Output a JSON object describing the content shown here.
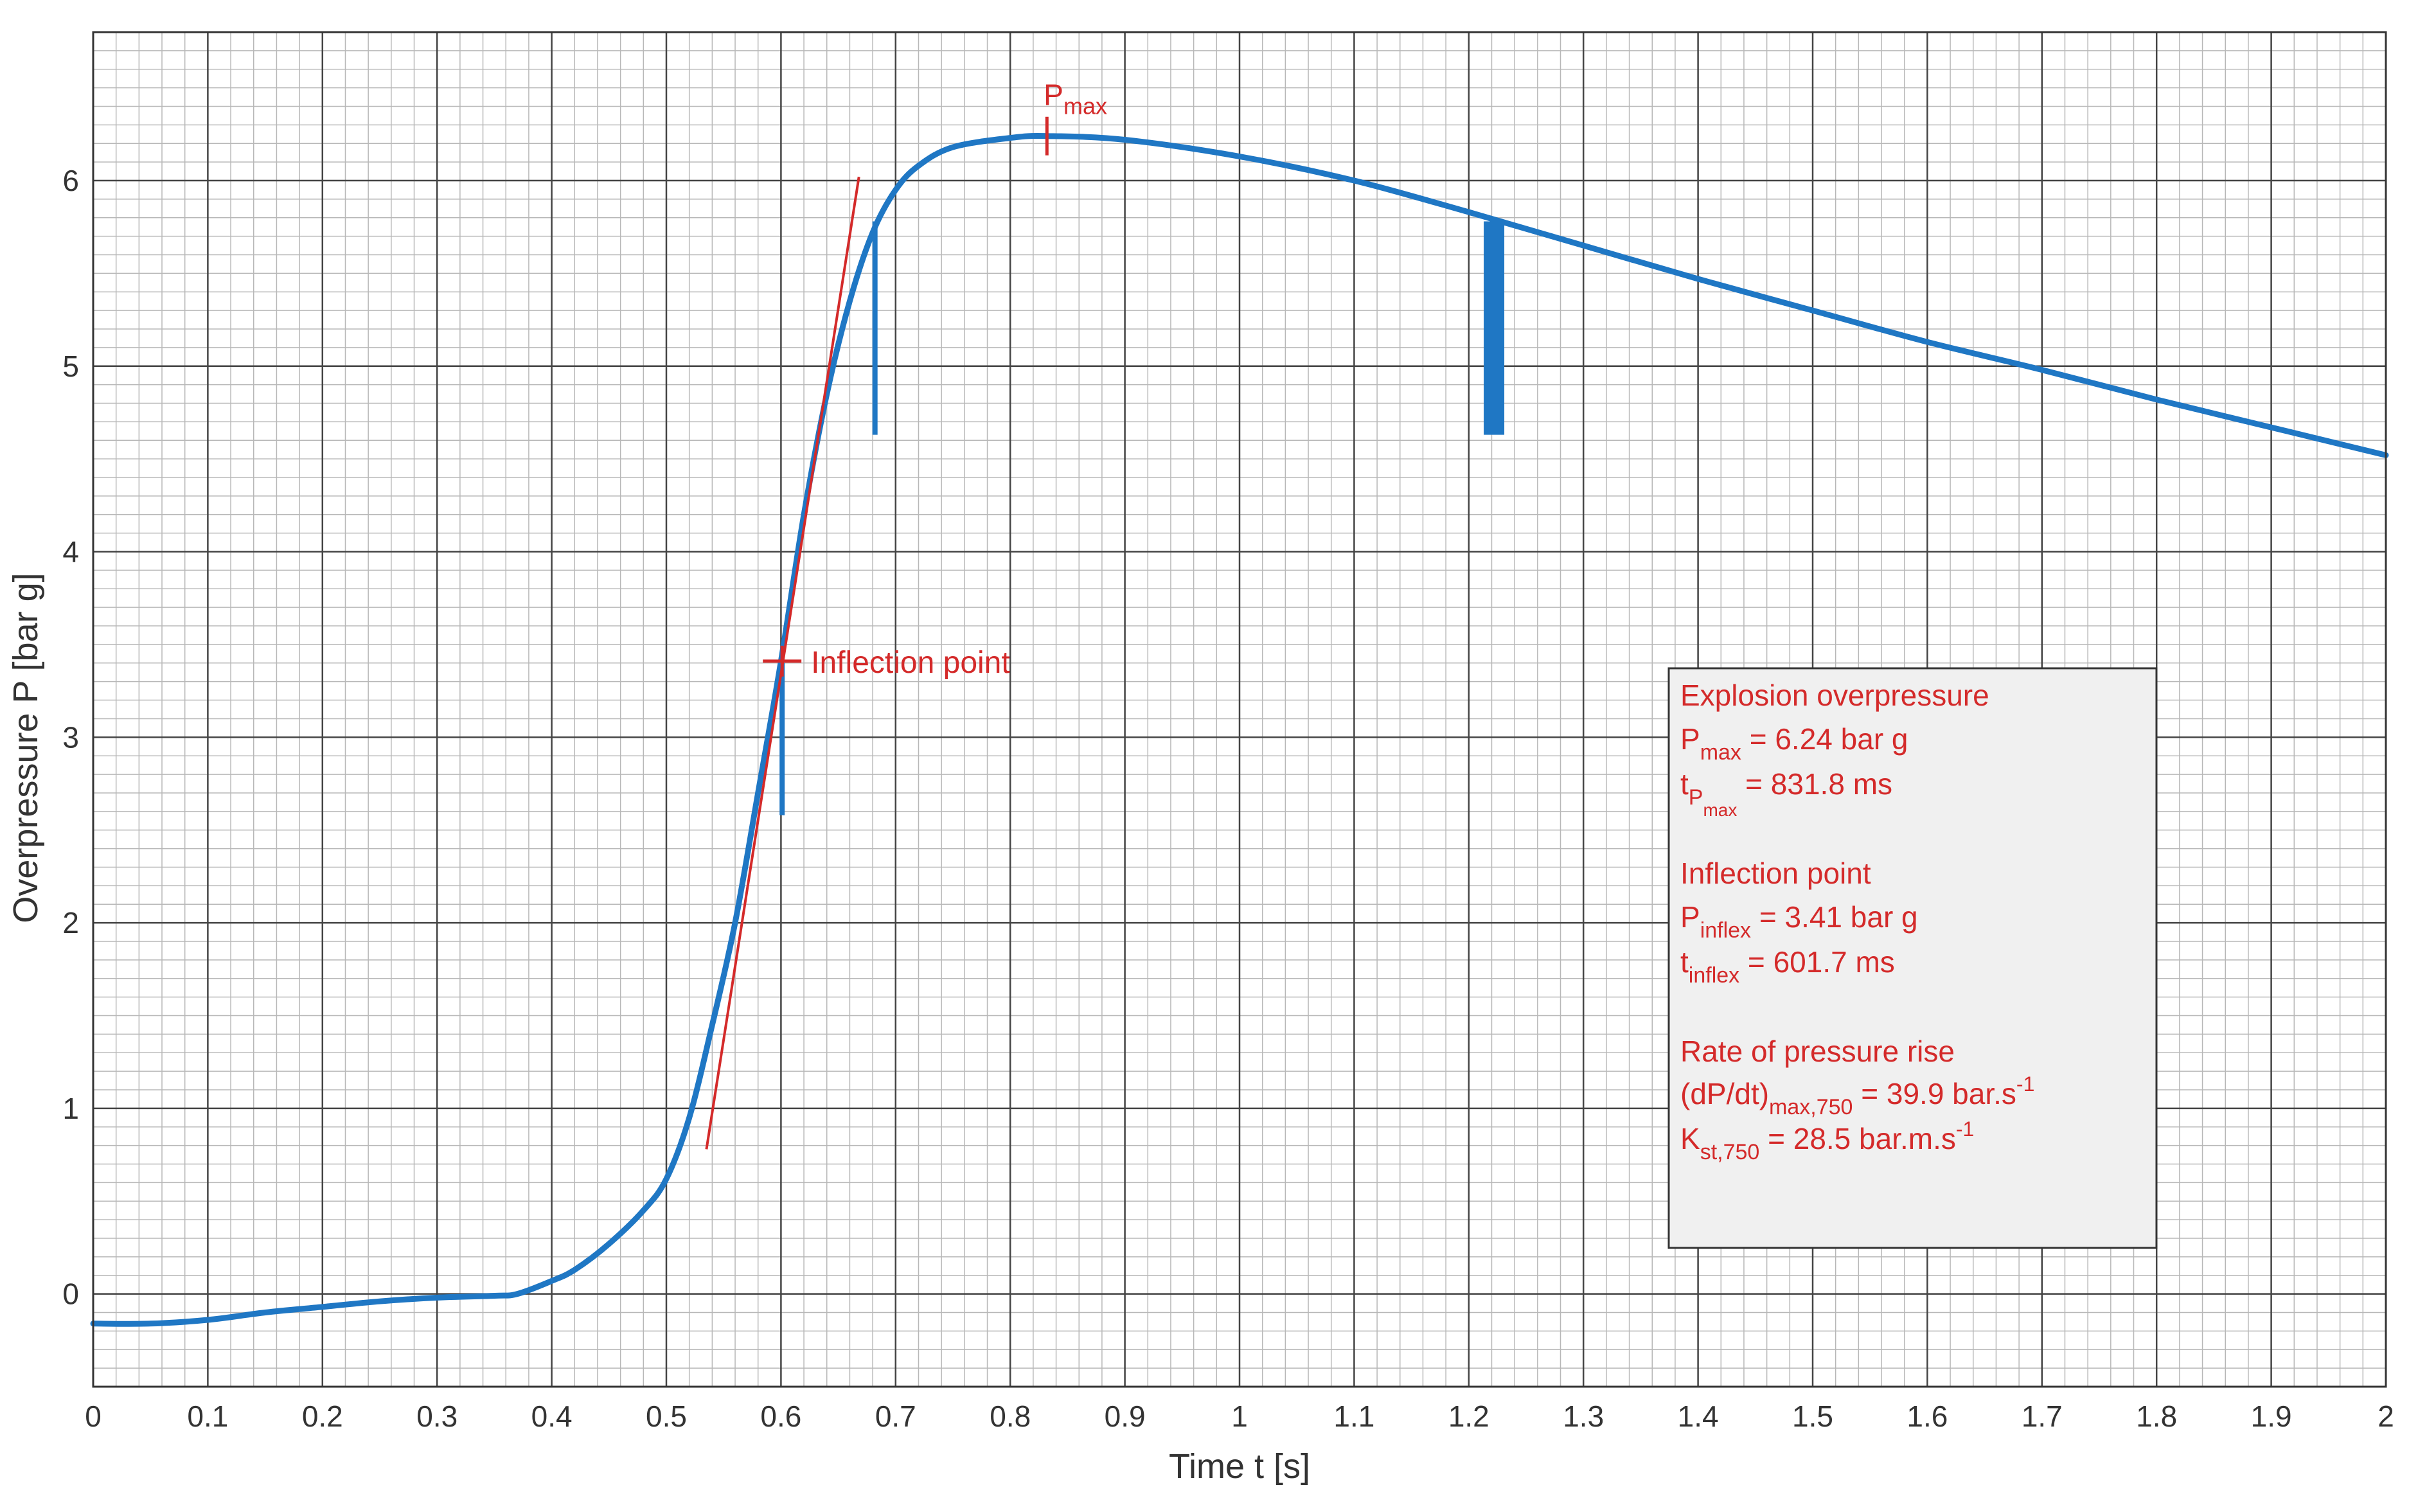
{
  "chart_data": {
    "type": "line",
    "title": "",
    "xlabel": "Time t [s]",
    "ylabel": "Overpressure P [bar g]",
    "xlim": [
      0,
      2
    ],
    "ylim": [
      -0.5,
      6.8
    ],
    "grid": {
      "major": true,
      "minor": true
    },
    "x_ticks": [
      "0",
      "0.1",
      "0.2",
      "0.3",
      "0.4",
      "0.5",
      "0.6",
      "0.7",
      "0.8",
      "0.9",
      "1",
      "1.1",
      "1.2",
      "1.3",
      "1.4",
      "1.5",
      "1.6",
      "1.7",
      "1.8",
      "1.9",
      "2"
    ],
    "y_ticks": [
      "0",
      "1",
      "2",
      "3",
      "4",
      "5",
      "6"
    ],
    "colors": {
      "pressure_curve": "#1f77c4",
      "annotation": "#d42a2a",
      "grid_major": "#444444",
      "grid_minor": "#b8b8b8",
      "info_box_bg": "#f0f0f0"
    },
    "series": [
      {
        "x": [
          0,
          0.05,
          0.1,
          0.15,
          0.2,
          0.25,
          0.3,
          0.35,
          0.37,
          0.4,
          0.42,
          0.45,
          0.48,
          0.5,
          0.52,
          0.54,
          0.56,
          0.58,
          0.6,
          0.62,
          0.64,
          0.66,
          0.68,
          0.7,
          0.72,
          0.75,
          0.8,
          0.832,
          0.9,
          1.0,
          1.1,
          1.2,
          1.3,
          1.4,
          1.5,
          1.6,
          1.7,
          1.8,
          1.9,
          2.0
        ],
        "y": [
          -0.16,
          -0.16,
          -0.14,
          -0.1,
          -0.07,
          -0.04,
          -0.02,
          -0.01,
          0.0,
          0.07,
          0.13,
          0.27,
          0.45,
          0.62,
          0.95,
          1.45,
          2.0,
          2.7,
          3.41,
          4.2,
          4.85,
          5.35,
          5.72,
          5.95,
          6.08,
          6.18,
          6.23,
          6.24,
          6.22,
          6.13,
          6.0,
          5.83,
          5.65,
          5.47,
          5.3,
          5.13,
          4.98,
          4.82,
          4.67,
          4.52
        ]
      }
    ],
    "tangent_line": {
      "x": [
        0.535,
        0.668
      ],
      "y": [
        0.78,
        6.02
      ]
    },
    "markers": [
      {
        "x": 0.832,
        "y": 6.24
      },
      {
        "x": 0.601,
        "y": 3.41
      }
    ],
    "artifacts": [
      {
        "x": 0.601,
        "y": [
          2.58,
          3.4
        ]
      },
      {
        "x": 0.682,
        "y": [
          4.63,
          5.78
        ]
      },
      {
        "x": 1.222,
        "y": [
          4.63,
          5.78
        ]
      }
    ],
    "annotations": {
      "pmax_label": {
        "main": "P",
        "sub": "max"
      },
      "inflection_label": "Inflection point"
    },
    "info_box": {
      "lines": [
        {
          "main": "Explosion overpressure"
        },
        {
          "main": "P",
          "sub": "max",
          "tail": " = 6.24 bar g"
        },
        {
          "main": "t",
          "sub": "P",
          "subsub": "max",
          "tail": " = 831.8 ms"
        },
        {
          "main": "Inflection point"
        },
        {
          "main": "P",
          "sub": "inflex",
          "tail": " = 3.41 bar g"
        },
        {
          "main": "t",
          "sub": "inflex",
          "tail": " = 601.7 ms"
        },
        {
          "main": "Rate of pressure rise"
        },
        {
          "main": "(dP/dt)",
          "sub": "max,750",
          "tail": " = 39.9 bar.s",
          "sup": "-1"
        },
        {
          "main": "K",
          "sub": "st,750",
          "tail": " = 28.5 bar.m.s",
          "sup": "-1"
        }
      ]
    }
  }
}
